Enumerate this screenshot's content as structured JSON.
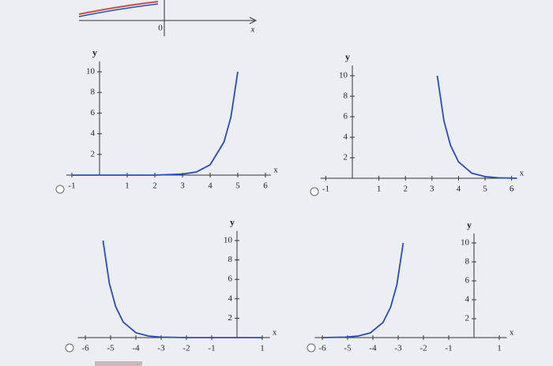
{
  "partial_graph": {
    "origin_label": "0",
    "x_label": "x"
  },
  "chart_data": [
    {
      "type": "line",
      "x_label": "x",
      "y_label": "y",
      "xlim": [
        -1.2,
        6.2
      ],
      "ylim": [
        0,
        11
      ],
      "xticks": [
        -1,
        1,
        2,
        3,
        4,
        5,
        6
      ],
      "yticks": [
        2,
        4,
        6,
        8,
        10
      ],
      "x": [
        -1,
        1,
        2,
        3,
        3.5,
        4,
        4.5,
        4.75,
        5
      ],
      "series": [
        {
          "color": "#2a4cb8",
          "values": [
            0,
            0,
            0,
            0.1,
            0.3,
            1,
            3.2,
            5.6,
            10
          ]
        }
      ]
    },
    {
      "type": "line",
      "x_label": "x",
      "y_label": "y",
      "xlim": [
        -1.2,
        6.2
      ],
      "ylim": [
        0,
        11
      ],
      "xticks": [
        -1,
        1,
        2,
        3,
        4,
        5,
        6
      ],
      "yticks": [
        2,
        4,
        6,
        8,
        10
      ],
      "x": [
        3.2,
        3.45,
        3.7,
        4,
        4.5,
        5,
        5.5,
        6.2
      ],
      "series": [
        {
          "color": "#2a4cb8",
          "values": [
            10,
            5.6,
            3.2,
            1.6,
            0.5,
            0.16,
            0.05,
            0
          ]
        }
      ]
    },
    {
      "type": "line",
      "x_label": "x",
      "y_label": "y",
      "xlim": [
        -6.3,
        1.3
      ],
      "ylim": [
        0,
        11
      ],
      "xticks": [
        -6,
        -5,
        -4,
        -3,
        -2,
        -1,
        1
      ],
      "yticks": [
        2,
        4,
        6,
        8,
        10
      ],
      "x": [
        -5.3,
        -5.05,
        -4.8,
        -4.5,
        -4,
        -3.5,
        -3,
        -2,
        1
      ],
      "series": [
        {
          "color": "#2a4cb8",
          "values": [
            10,
            5.6,
            3.2,
            1.6,
            0.5,
            0.16,
            0.05,
            0,
            0
          ]
        }
      ]
    },
    {
      "type": "line",
      "x_label": "x",
      "y_label": "y",
      "xlim": [
        -6.3,
        1.3
      ],
      "ylim": [
        0,
        11
      ],
      "xticks": [
        -6,
        -5,
        -4,
        -3,
        -2,
        -1,
        1
      ],
      "yticks": [
        2,
        4,
        6,
        8,
        10
      ],
      "x": [
        -6,
        -5.1,
        -4.6,
        -4.1,
        -3.6,
        -3.3,
        -3.05,
        -2.8
      ],
      "series": [
        {
          "color": "#2a4cb8",
          "values": [
            0,
            0.05,
            0.16,
            0.5,
            1.6,
            3.2,
            5.6,
            10
          ]
        }
      ]
    }
  ]
}
